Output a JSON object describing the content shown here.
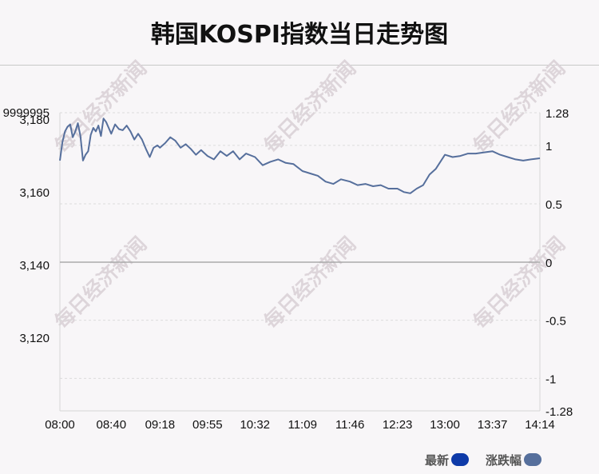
{
  "chart_data": {
    "type": "line",
    "title": "韩国KOSPI指数当日走势图",
    "x_ticks": [
      "08:00",
      "08:40",
      "09:18",
      "09:55",
      "10:32",
      "11:09",
      "11:46",
      "12:23",
      "13:00",
      "13:37",
      "14:14"
    ],
    "y_left_ticks": [
      "9999995",
      "3,120",
      "3,140",
      "3,160",
      "3,180"
    ],
    "y_right_ticks": [
      "-1.28",
      "-1",
      "-0.5",
      "0",
      "0.5",
      "1",
      "1.28"
    ],
    "y_left_range": [
      3100,
      3182
    ],
    "y_right_range": [
      -1.28,
      1.28
    ],
    "series": [
      {
        "name": "最新",
        "color": "#0e3aa8",
        "x": [],
        "values": []
      },
      {
        "name": "涨跌幅",
        "color": "#566f9c",
        "x": [
          "08:00",
          "08:02",
          "08:04",
          "08:06",
          "08:08",
          "08:10",
          "08:12",
          "08:14",
          "08:16",
          "08:18",
          "08:20",
          "08:22",
          "08:24",
          "08:26",
          "08:28",
          "08:30",
          "08:32",
          "08:34",
          "08:36",
          "08:38",
          "08:40",
          "08:43",
          "08:46",
          "08:49",
          "08:52",
          "08:55",
          "08:58",
          "09:01",
          "09:04",
          "09:07",
          "09:10",
          "09:13",
          "09:16",
          "09:18",
          "09:22",
          "09:26",
          "09:30",
          "09:34",
          "09:38",
          "09:42",
          "09:46",
          "09:50",
          "09:55",
          "10:00",
          "10:05",
          "10:10",
          "10:15",
          "10:20",
          "10:25",
          "10:32",
          "10:38",
          "10:44",
          "10:50",
          "10:56",
          "11:02",
          "11:09",
          "11:15",
          "11:21",
          "11:27",
          "11:33",
          "11:39",
          "11:46",
          "11:52",
          "11:58",
          "12:04",
          "12:10",
          "12:16",
          "12:23",
          "12:28",
          "12:33",
          "12:38",
          "12:43",
          "12:48",
          "12:53",
          "13:00",
          "13:06",
          "13:12",
          "13:18",
          "13:24",
          "13:30",
          "13:37",
          "13:43",
          "13:49",
          "13:55",
          "14:01",
          "14:07",
          "14:14"
        ],
        "values": [
          0.87,
          1.03,
          1.12,
          1.16,
          1.18,
          1.07,
          1.12,
          1.19,
          1.08,
          0.87,
          0.92,
          0.95,
          1.09,
          1.15,
          1.12,
          1.17,
          1.08,
          1.23,
          1.2,
          1.15,
          1.1,
          1.18,
          1.14,
          1.13,
          1.17,
          1.12,
          1.05,
          1.1,
          1.05,
          0.97,
          0.9,
          0.98,
          1.0,
          0.98,
          1.02,
          1.07,
          1.04,
          0.98,
          1.01,
          0.97,
          0.92,
          0.96,
          0.91,
          0.88,
          0.95,
          0.91,
          0.95,
          0.88,
          0.93,
          0.9,
          0.83,
          0.86,
          0.88,
          0.85,
          0.84,
          0.78,
          0.76,
          0.74,
          0.69,
          0.67,
          0.71,
          0.69,
          0.66,
          0.67,
          0.65,
          0.66,
          0.63,
          0.63,
          0.6,
          0.59,
          0.63,
          0.66,
          0.75,
          0.8,
          0.92,
          0.9,
          0.91,
          0.93,
          0.93,
          0.94,
          0.95,
          0.92,
          0.9,
          0.88,
          0.87,
          0.88,
          0.89
        ]
      }
    ],
    "grid": true,
    "legend_position": "bottom-right",
    "watermark": "每日经济新闻"
  }
}
